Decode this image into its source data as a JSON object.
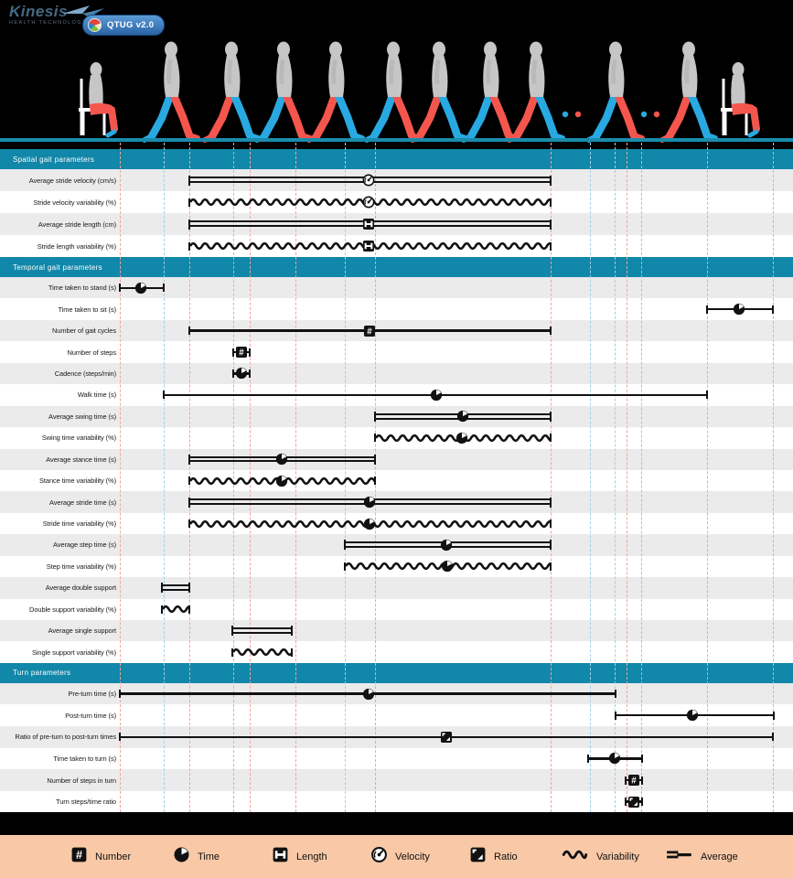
{
  "header": {
    "logo_text": "Kinesis",
    "logo_tagline": "HEALTH TECHNOLOGIES",
    "badge_label": "QTUG v2.0"
  },
  "colors": {
    "section_header_teal": "#1187a9",
    "floor_teal": "#1a8cab",
    "row_alt_gray": "#ebebeb",
    "row_white": "#ffffff",
    "bar_black": "#111111",
    "guide_red": "#f2a49d",
    "guide_blue": "#9fd0ea",
    "legend_bg_peach": "#f9c9a7",
    "figure_gray": "#c6c6c6",
    "leg_red": "#f4564e",
    "leg_blue": "#29a9e1",
    "badge_blue": "#2a63a5"
  },
  "chart_data": {
    "type": "range",
    "x_axis": {
      "unit": "px",
      "min": 0,
      "max": 867
    },
    "guides": {
      "red": [
        131,
        207,
        255,
        273,
        323,
        410,
        602,
        685,
        701,
        773,
        845
      ],
      "blue": [
        179,
        377,
        645,
        672
      ]
    },
    "sections": [
      {
        "title": "Spatial gait parameters",
        "rows": [
          {
            "label": "Average stride velocity (cm/s)",
            "style": "double",
            "start": 207,
            "end": 602,
            "marker": 403,
            "icon": "velocity"
          },
          {
            "label": "Stride velocity variability (%)",
            "style": "wavy",
            "start": 207,
            "end": 602,
            "marker": 403,
            "icon": "velocity"
          },
          {
            "label": "Average stride length (cm)",
            "style": "double",
            "start": 207,
            "end": 602,
            "marker": 403,
            "icon": "length"
          },
          {
            "label": "Stride length variability (%)",
            "style": "wavy",
            "start": 207,
            "end": 602,
            "marker": 403,
            "icon": "length"
          }
        ]
      },
      {
        "title": "Temporal gait parameters",
        "rows": [
          {
            "label": "Time taken to stand (s)",
            "style": "single",
            "start": 131,
            "end": 179,
            "marker": 154,
            "icon": "time"
          },
          {
            "label": "Time taken to sit (s)",
            "style": "single",
            "start": 773,
            "end": 845,
            "marker": 808,
            "icon": "time"
          },
          {
            "label": "Number of gait cycles",
            "style": "single",
            "start": 207,
            "end": 602,
            "marker": 404,
            "icon": "number"
          },
          {
            "label": "Number of steps",
            "style": "single",
            "start": 255,
            "end": 273,
            "marker": 264,
            "icon": "number"
          },
          {
            "label": "Cadence (steps/min)",
            "style": "single",
            "start": 255,
            "end": 273,
            "marker": 264,
            "icon": "time"
          },
          {
            "label": "Walk time (s)",
            "style": "single",
            "start": 179,
            "end": 773,
            "marker": 477,
            "icon": "time"
          },
          {
            "label": "Average swing time (s)",
            "style": "double",
            "start": 410,
            "end": 602,
            "marker": 506,
            "icon": "time"
          },
          {
            "label": "Swing time variability (%)",
            "style": "wavy",
            "start": 410,
            "end": 602,
            "marker": 505,
            "icon": "time"
          },
          {
            "label": "Average stance time (s)",
            "style": "double",
            "start": 207,
            "end": 410,
            "marker": 308,
            "icon": "time"
          },
          {
            "label": "Stance time variability (%)",
            "style": "wavy",
            "start": 207,
            "end": 410,
            "marker": 308,
            "icon": "time"
          },
          {
            "label": "Average stride time (s)",
            "style": "double",
            "start": 207,
            "end": 602,
            "marker": 404,
            "icon": "time"
          },
          {
            "label": "Stride time variability (%)",
            "style": "wavy",
            "start": 207,
            "end": 602,
            "marker": 404,
            "icon": "time"
          },
          {
            "label": "Average step time (s)",
            "style": "double",
            "start": 377,
            "end": 602,
            "marker": 488,
            "icon": "time"
          },
          {
            "label": "Step time variability (%)",
            "style": "wavy",
            "start": 377,
            "end": 602,
            "marker": 489,
            "icon": "time"
          },
          {
            "label": "Average double support",
            "style": "double",
            "start": 177,
            "end": 207,
            "marker": null,
            "icon": null
          },
          {
            "label": "Double support variability (%)",
            "style": "wavy",
            "start": 177,
            "end": 207,
            "marker": null,
            "icon": null
          },
          {
            "label": "Average single support",
            "style": "double",
            "start": 254,
            "end": 319,
            "marker": null,
            "icon": null
          },
          {
            "label": "Single support variability (%)",
            "style": "wavy",
            "start": 254,
            "end": 319,
            "marker": null,
            "icon": null
          }
        ]
      },
      {
        "title": "Turn parameters",
        "rows": [
          {
            "label": "Pre-turn time (s)",
            "style": "single",
            "start": 131,
            "end": 673,
            "marker": 403,
            "icon": "time"
          },
          {
            "label": "Post-turn time (s)",
            "style": "single",
            "start": 673,
            "end": 846,
            "marker": 757,
            "icon": "time"
          },
          {
            "label": "Ratio of pre-turn to post-turn times",
            "style": "single",
            "start": 131,
            "end": 845,
            "marker": 488,
            "icon": "ratio"
          },
          {
            "label": "Time taken to turn (s)",
            "style": "single",
            "start": 643,
            "end": 702,
            "marker": 672,
            "icon": "time"
          },
          {
            "label": "Number of steps in turn",
            "style": "single",
            "start": 684,
            "end": 702,
            "marker": 693,
            "icon": "number"
          },
          {
            "label": "Turn steps/time ratio",
            "style": "single",
            "start": 684,
            "end": 702,
            "marker": 693,
            "icon": "ratio"
          }
        ]
      }
    ]
  },
  "legend": {
    "items": [
      {
        "icon": "number",
        "label": "Number"
      },
      {
        "icon": "time",
        "label": "Time"
      },
      {
        "icon": "length",
        "label": "Length"
      },
      {
        "icon": "velocity",
        "label": "Velocity"
      },
      {
        "icon": "ratio",
        "label": "Ratio"
      },
      {
        "icon": "variability",
        "label": "Variability"
      },
      {
        "icon": "average",
        "label": "Average"
      }
    ]
  }
}
